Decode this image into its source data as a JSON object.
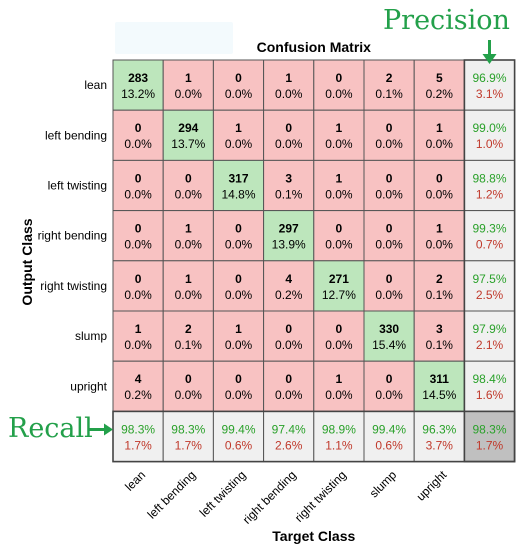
{
  "chart_data": {
    "type": "heatmap",
    "title": "Confusion Matrix",
    "xlabel": "Target Class",
    "ylabel": "Output Class",
    "classes": [
      "lean",
      "left bending",
      "left twisting",
      "right bending",
      "right twisting",
      "slump",
      "upright"
    ],
    "counts": [
      [
        283,
        1,
        0,
        1,
        0,
        2,
        5
      ],
      [
        0,
        294,
        1,
        0,
        1,
        0,
        1
      ],
      [
        0,
        0,
        317,
        3,
        1,
        0,
        0
      ],
      [
        0,
        1,
        0,
        297,
        0,
        0,
        1
      ],
      [
        0,
        1,
        0,
        4,
        271,
        0,
        2
      ],
      [
        1,
        2,
        1,
        0,
        0,
        330,
        3
      ],
      [
        4,
        0,
        0,
        0,
        1,
        0,
        311
      ]
    ],
    "percents": [
      [
        "13.2%",
        "0.0%",
        "0.0%",
        "0.0%",
        "0.0%",
        "0.1%",
        "0.2%"
      ],
      [
        "0.0%",
        "13.7%",
        "0.0%",
        "0.0%",
        "0.0%",
        "0.0%",
        "0.0%"
      ],
      [
        "0.0%",
        "0.0%",
        "14.8%",
        "0.1%",
        "0.0%",
        "0.0%",
        "0.0%"
      ],
      [
        "0.0%",
        "0.0%",
        "0.0%",
        "13.9%",
        "0.0%",
        "0.0%",
        "0.0%"
      ],
      [
        "0.0%",
        "0.0%",
        "0.0%",
        "0.2%",
        "12.7%",
        "0.0%",
        "0.1%"
      ],
      [
        "0.0%",
        "0.1%",
        "0.0%",
        "0.0%",
        "0.0%",
        "15.4%",
        "0.1%"
      ],
      [
        "0.2%",
        "0.0%",
        "0.0%",
        "0.0%",
        "0.0%",
        "0.0%",
        "14.5%"
      ]
    ],
    "row_summary": [
      [
        "96.9%",
        "3.1%"
      ],
      [
        "99.0%",
        "1.0%"
      ],
      [
        "98.8%",
        "1.2%"
      ],
      [
        "99.3%",
        "0.7%"
      ],
      [
        "97.5%",
        "2.5%"
      ],
      [
        "97.9%",
        "2.1%"
      ],
      [
        "98.4%",
        "1.6%"
      ]
    ],
    "col_summary": [
      [
        "98.3%",
        "1.7%"
      ],
      [
        "98.3%",
        "1.7%"
      ],
      [
        "99.4%",
        "0.6%"
      ],
      [
        "97.4%",
        "2.6%"
      ],
      [
        "98.9%",
        "1.1%"
      ],
      [
        "99.4%",
        "0.6%"
      ],
      [
        "96.3%",
        "3.7%"
      ]
    ],
    "overall": [
      "98.3%",
      "1.7%"
    ],
    "annotations": {
      "precision": "Precision",
      "recall": "Recall"
    },
    "colors": {
      "correct_cell": "#bde6bc",
      "wrong_cell": "#f8c2c2",
      "summary_cell": "#f0f0f0",
      "overall_cell": "#c0c0c0",
      "green_text": "#2aa12a",
      "red_text": "#c0392b",
      "annotation": "#23a04a",
      "grid": "#555555"
    }
  }
}
